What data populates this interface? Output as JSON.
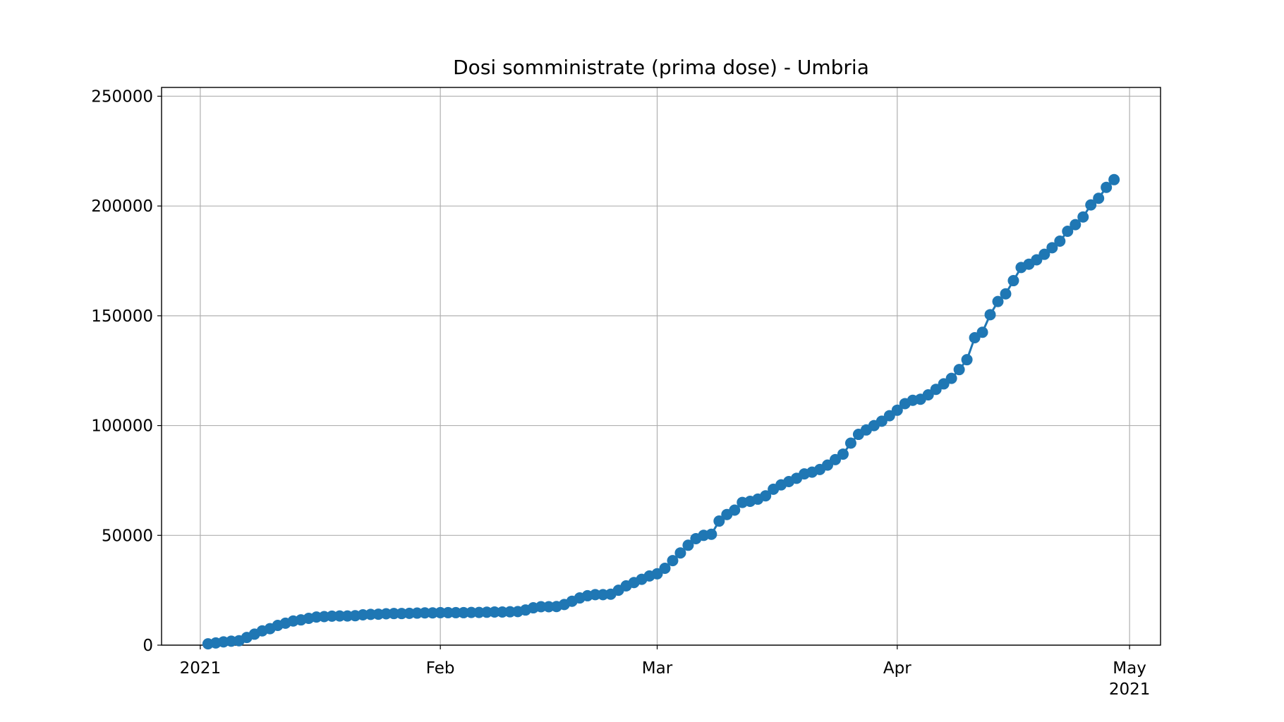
{
  "chart_data": {
    "type": "line",
    "title": "Dosi somministrate (prima dose) - Umbria",
    "x": [
      "2021-01-02",
      "2021-01-03",
      "2021-01-04",
      "2021-01-05",
      "2021-01-06",
      "2021-01-07",
      "2021-01-08",
      "2021-01-09",
      "2021-01-10",
      "2021-01-11",
      "2021-01-12",
      "2021-01-13",
      "2021-01-14",
      "2021-01-15",
      "2021-01-16",
      "2021-01-17",
      "2021-01-18",
      "2021-01-19",
      "2021-01-20",
      "2021-01-21",
      "2021-01-22",
      "2021-01-23",
      "2021-01-24",
      "2021-01-25",
      "2021-01-26",
      "2021-01-27",
      "2021-01-28",
      "2021-01-29",
      "2021-01-30",
      "2021-01-31",
      "2021-02-01",
      "2021-02-02",
      "2021-02-03",
      "2021-02-04",
      "2021-02-05",
      "2021-02-06",
      "2021-02-07",
      "2021-02-08",
      "2021-02-09",
      "2021-02-10",
      "2021-02-11",
      "2021-02-12",
      "2021-02-13",
      "2021-02-14",
      "2021-02-15",
      "2021-02-16",
      "2021-02-17",
      "2021-02-18",
      "2021-02-19",
      "2021-02-20",
      "2021-02-21",
      "2021-02-22",
      "2021-02-23",
      "2021-02-24",
      "2021-02-25",
      "2021-02-26",
      "2021-02-27",
      "2021-02-28",
      "2021-03-01",
      "2021-03-02",
      "2021-03-03",
      "2021-03-04",
      "2021-03-05",
      "2021-03-06",
      "2021-03-07",
      "2021-03-08",
      "2021-03-09",
      "2021-03-10",
      "2021-03-11",
      "2021-03-12",
      "2021-03-13",
      "2021-03-14",
      "2021-03-15",
      "2021-03-16",
      "2021-03-17",
      "2021-03-18",
      "2021-03-19",
      "2021-03-20",
      "2021-03-21",
      "2021-03-22",
      "2021-03-23",
      "2021-03-24",
      "2021-03-25",
      "2021-03-26",
      "2021-03-27",
      "2021-03-28",
      "2021-03-29",
      "2021-03-30",
      "2021-03-31",
      "2021-04-01",
      "2021-04-02",
      "2021-04-03",
      "2021-04-04",
      "2021-04-05",
      "2021-04-06",
      "2021-04-07",
      "2021-04-08",
      "2021-04-09",
      "2021-04-10",
      "2021-04-11",
      "2021-04-12",
      "2021-04-13",
      "2021-04-14",
      "2021-04-15",
      "2021-04-16",
      "2021-04-17",
      "2021-04-18",
      "2021-04-19",
      "2021-04-20",
      "2021-04-21",
      "2021-04-22",
      "2021-04-23",
      "2021-04-24",
      "2021-04-25",
      "2021-04-26",
      "2021-04-27",
      "2021-04-28",
      "2021-04-29"
    ],
    "series": [
      {
        "color": "#1f77b4",
        "values": [
          600,
          1000,
          1500,
          1800,
          2000,
          3500,
          5000,
          6500,
          7500,
          9000,
          10000,
          11000,
          11500,
          12200,
          12800,
          13000,
          13200,
          13300,
          13300,
          13400,
          13800,
          14000,
          14100,
          14300,
          14400,
          14400,
          14500,
          14600,
          14700,
          14700,
          14800,
          14800,
          14800,
          14800,
          14900,
          14900,
          15000,
          15100,
          15100,
          15200,
          15300,
          16000,
          17000,
          17500,
          17500,
          17600,
          18500,
          20000,
          21500,
          22500,
          23000,
          23000,
          23200,
          25000,
          27000,
          28500,
          30000,
          31500,
          32500,
          35000,
          38500,
          42000,
          45500,
          48500,
          50000,
          50500,
          56500,
          59500,
          61500,
          65000,
          65500,
          66500,
          68000,
          71000,
          73000,
          74500,
          76000,
          78000,
          78800,
          80000,
          82000,
          84500,
          87000,
          92000,
          96000,
          98000,
          100000,
          102000,
          104500,
          107000,
          110000,
          111500,
          112000,
          114000,
          116500,
          119000,
          121500,
          125500,
          130000,
          140000,
          142500,
          150500,
          156500,
          160000,
          166000,
          172000,
          173500,
          175500,
          178000,
          181000,
          184000,
          188500,
          191500,
          195000,
          200500,
          203500,
          208500,
          212000
        ]
      }
    ],
    "xlim": [
      "2020-12-27",
      "2021-05-05"
    ],
    "xticks": [
      {
        "value": "2021-01-01",
        "label": [
          "2021"
        ]
      },
      {
        "value": "2021-02-01",
        "label": [
          "Feb"
        ]
      },
      {
        "value": "2021-03-01",
        "label": [
          "Mar"
        ]
      },
      {
        "value": "2021-04-01",
        "label": [
          "Apr"
        ]
      },
      {
        "value": "2021-05-01",
        "label": [
          "May",
          "2021"
        ]
      }
    ],
    "ylim": [
      0,
      254000
    ],
    "yticks": [
      0,
      50000,
      100000,
      150000,
      200000,
      250000
    ],
    "grid": true
  }
}
